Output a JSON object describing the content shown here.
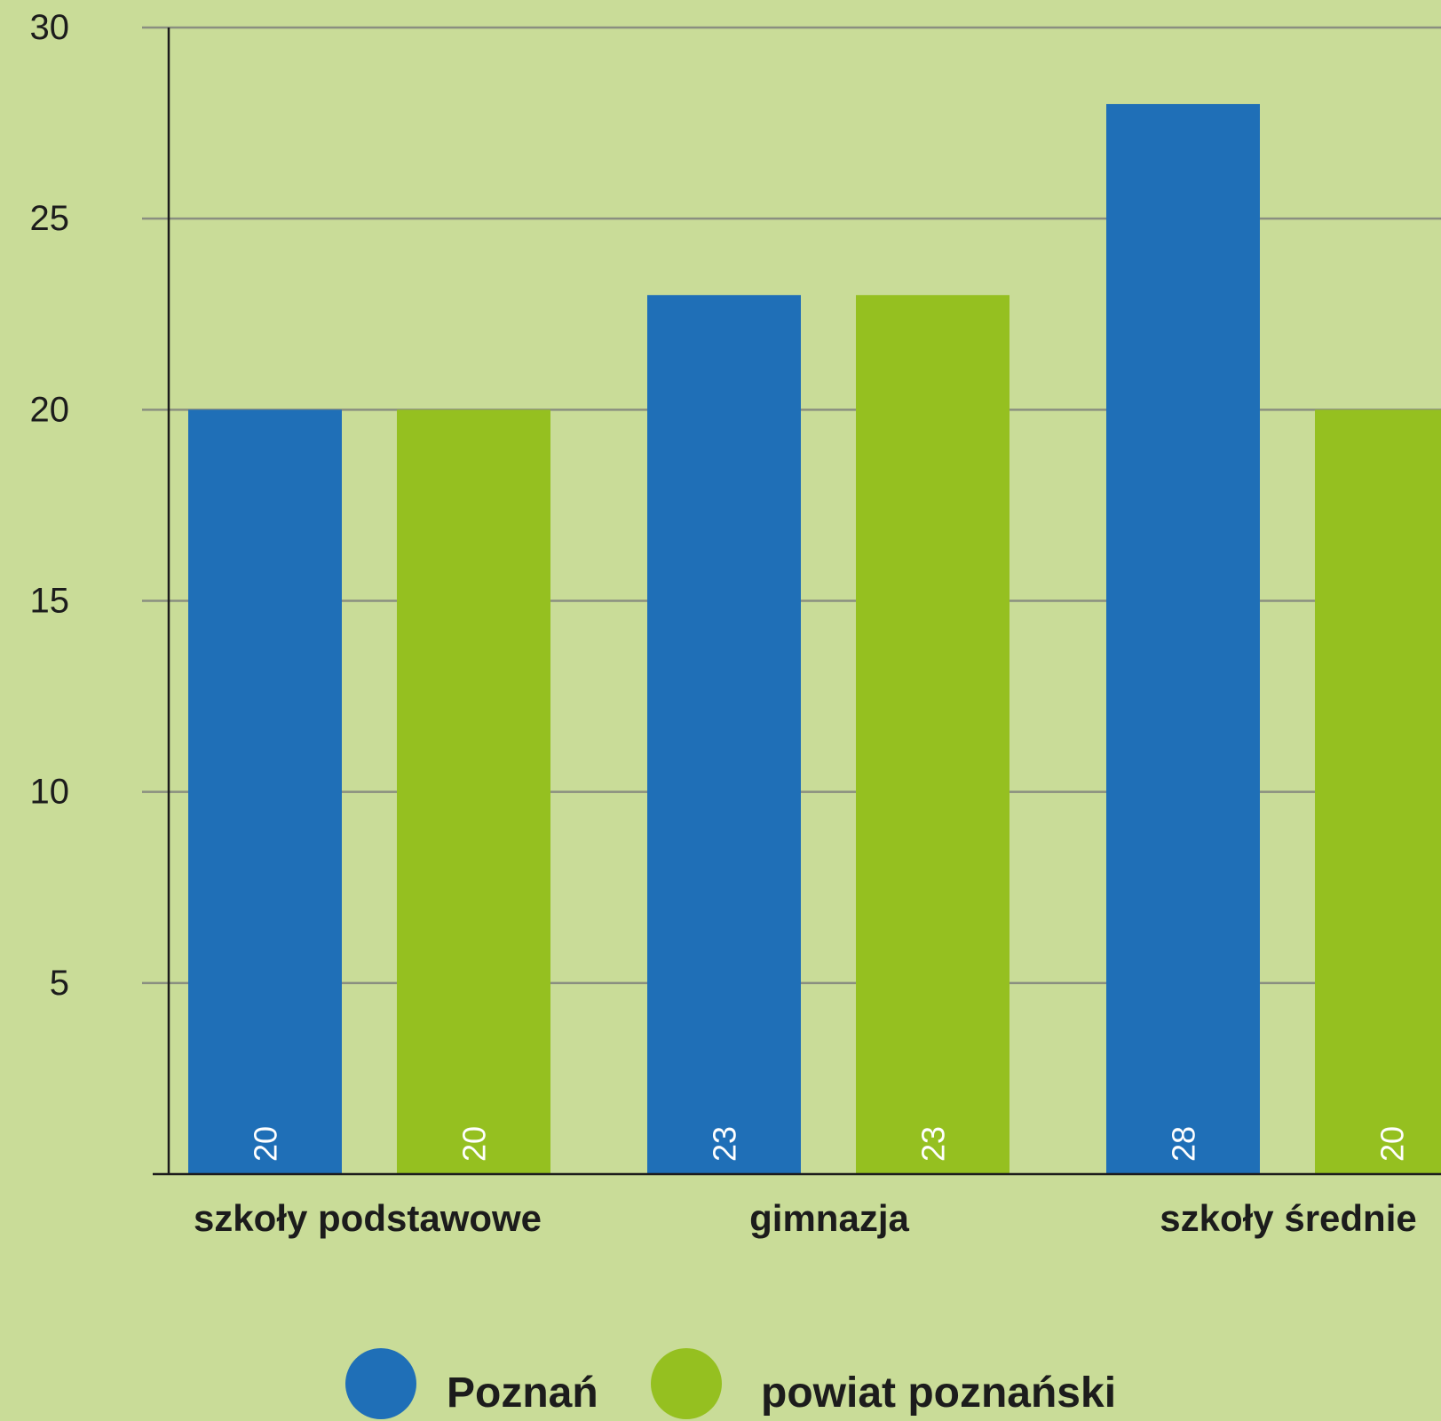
{
  "chart_data": {
    "type": "bar",
    "categories": [
      "szkoły podstawowe",
      "gimnazja",
      "szkoły średnie"
    ],
    "series": [
      {
        "name": "Poznań",
        "values": [
          20,
          23,
          28
        ],
        "color": "#1f6fb7"
      },
      {
        "name": "powiat poznański",
        "values": [
          20,
          23,
          20
        ],
        "color": "#95c020"
      }
    ],
    "bar_labels": [
      [
        "20",
        "23",
        "28"
      ],
      [
        "20",
        "23",
        "20"
      ]
    ],
    "yticks": [
      5,
      10,
      15,
      20,
      25,
      30
    ],
    "ylim": [
      0,
      30
    ],
    "grid": true,
    "legend_position": "bottom",
    "background": "#c9dc98",
    "gridline_color": "#8a8f80",
    "axis_color": "#1c1c1c"
  }
}
